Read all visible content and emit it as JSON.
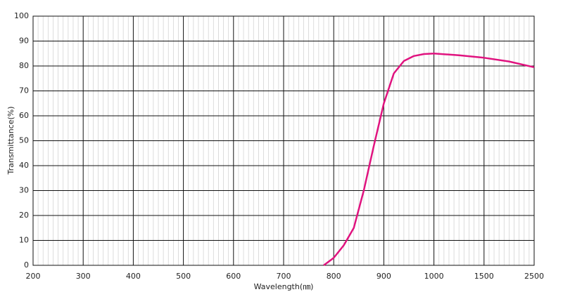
{
  "chart_data": {
    "type": "line",
    "x_label": "Wavelength(㎚)",
    "y_label": "Transmittance(%)",
    "xscale": "piecewise",
    "xlim": [
      200,
      2500
    ],
    "xticks": [
      200,
      300,
      400,
      500,
      600,
      700,
      800,
      900,
      1000,
      1500,
      2500
    ],
    "xminorticks": [
      210,
      220,
      230,
      240,
      250,
      260,
      270,
      280,
      290,
      310,
      320,
      330,
      340,
      350,
      360,
      370,
      380,
      390,
      410,
      420,
      430,
      440,
      450,
      460,
      470,
      480,
      490,
      510,
      520,
      530,
      540,
      550,
      560,
      570,
      580,
      590,
      610,
      620,
      630,
      640,
      650,
      660,
      670,
      680,
      690,
      710,
      720,
      730,
      740,
      750,
      760,
      770,
      780,
      790,
      810,
      820,
      830,
      840,
      850,
      860,
      870,
      880,
      890,
      910,
      920,
      930,
      940,
      950,
      960,
      970,
      980,
      990,
      1050,
      1100,
      1150,
      1200,
      1250,
      1300,
      1350,
      1400,
      1450,
      1600,
      1700,
      1800,
      1900,
      2000,
      2100,
      2200,
      2300,
      2400
    ],
    "ylim": [
      0,
      100
    ],
    "yticks": [
      0,
      10,
      20,
      30,
      40,
      50,
      60,
      70,
      80,
      90,
      100
    ],
    "grid": true,
    "series": [
      {
        "name": "Transmittance",
        "color": "#e0137f",
        "x": [
          780,
          800,
          820,
          840,
          860,
          880,
          900,
          920,
          940,
          960,
          980,
          1000,
          1250,
          1500,
          2000,
          2500
        ],
        "values": [
          0,
          3,
          8,
          15,
          30,
          48,
          65,
          77,
          82,
          84,
          84.8,
          85,
          84.3,
          83.3,
          81.8,
          79.5
        ]
      }
    ]
  }
}
